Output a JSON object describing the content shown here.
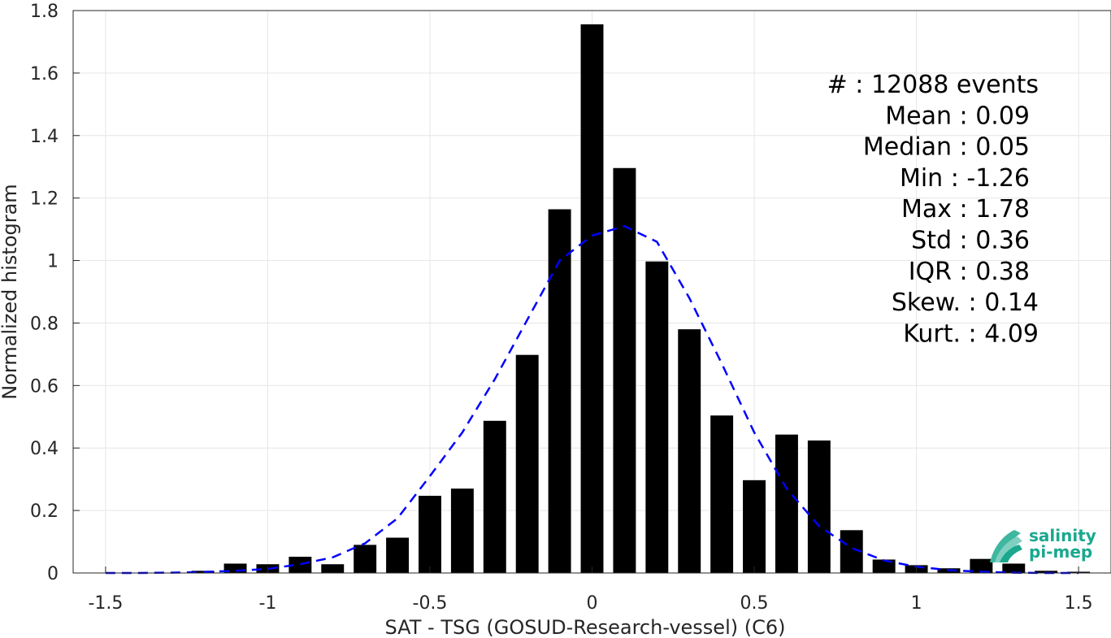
{
  "chart_data": {
    "type": "bar",
    "xlabel": "SAT - TSG (GOSUD-Research-vessel) (C6)",
    "ylabel": "Normalized histogram",
    "xlim": [
      -1.6,
      1.6
    ],
    "ylim": [
      0,
      1.8
    ],
    "xticks": [
      -1.5,
      -1,
      -0.5,
      0,
      0.5,
      1,
      1.5
    ],
    "xtick_labels": [
      "-1.5",
      "-1",
      "-0.5",
      "0",
      "0.5",
      "1",
      "1.5"
    ],
    "yticks": [
      0,
      0.2,
      0.4,
      0.6,
      0.8,
      1,
      1.2,
      1.4,
      1.6,
      1.8
    ],
    "ytick_labels": [
      "0",
      "0.2",
      "0.4",
      "0.6",
      "0.8",
      "1",
      "1.2",
      "1.4",
      "1.6",
      "1.8"
    ],
    "grid": true,
    "bar_color": "#000000",
    "bar_width": 0.07,
    "bars": [
      {
        "x": -1.5,
        "y": 0.0
      },
      {
        "x": -1.4,
        "y": 0.0
      },
      {
        "x": -1.3,
        "y": 0.0
      },
      {
        "x": -1.2,
        "y": 0.007
      },
      {
        "x": -1.1,
        "y": 0.03
      },
      {
        "x": -1.0,
        "y": 0.028
      },
      {
        "x": -0.9,
        "y": 0.052
      },
      {
        "x": -0.8,
        "y": 0.028
      },
      {
        "x": -0.7,
        "y": 0.09
      },
      {
        "x": -0.6,
        "y": 0.113
      },
      {
        "x": -0.5,
        "y": 0.247
      },
      {
        "x": -0.4,
        "y": 0.27
      },
      {
        "x": -0.3,
        "y": 0.487
      },
      {
        "x": -0.2,
        "y": 0.698
      },
      {
        "x": -0.1,
        "y": 1.164
      },
      {
        "x": 0.0,
        "y": 1.756
      },
      {
        "x": 0.1,
        "y": 1.296
      },
      {
        "x": 0.2,
        "y": 0.997
      },
      {
        "x": 0.3,
        "y": 0.78
      },
      {
        "x": 0.4,
        "y": 0.504
      },
      {
        "x": 0.5,
        "y": 0.297
      },
      {
        "x": 0.6,
        "y": 0.443
      },
      {
        "x": 0.7,
        "y": 0.424
      },
      {
        "x": 0.8,
        "y": 0.137
      },
      {
        "x": 0.9,
        "y": 0.043
      },
      {
        "x": 1.0,
        "y": 0.025
      },
      {
        "x": 1.1,
        "y": 0.015
      },
      {
        "x": 1.2,
        "y": 0.045
      },
      {
        "x": 1.3,
        "y": 0.03
      },
      {
        "x": 1.4,
        "y": 0.007
      },
      {
        "x": 1.5,
        "y": 0.004
      }
    ],
    "fit_curve": {
      "style": "dashed",
      "color": "#0000ff",
      "x": [
        -1.5,
        -1.4,
        -1.3,
        -1.2,
        -1.1,
        -1.0,
        -0.9,
        -0.8,
        -0.7,
        -0.6,
        -0.5,
        -0.4,
        -0.3,
        -0.2,
        -0.1,
        0.0,
        0.1,
        0.2,
        0.3,
        0.4,
        0.5,
        0.6,
        0.7,
        0.8,
        0.9,
        1.0,
        1.1,
        1.2,
        1.3,
        1.4,
        1.5
      ],
      "y": [
        0.0,
        0.0,
        0.001,
        0.003,
        0.007,
        0.013,
        0.028,
        0.05,
        0.095,
        0.175,
        0.31,
        0.45,
        0.62,
        0.81,
        1.0,
        1.08,
        1.11,
        1.06,
        0.88,
        0.67,
        0.45,
        0.27,
        0.15,
        0.08,
        0.04,
        0.02,
        0.009,
        0.004,
        0.001,
        0.0,
        0.0
      ]
    },
    "annotations": [
      "#  : 12088 events",
      "Mean : 0.09",
      "Median : 0.05",
      "Min : -1.26",
      "Max : 1.78",
      "Std : 0.36",
      "IQR : 0.38",
      "Skew. : 0.14",
      "Kurt. : 4.09"
    ]
  },
  "logo": {
    "line1": "salinity",
    "line2": "pi-mep",
    "color": "#1aa88f"
  }
}
